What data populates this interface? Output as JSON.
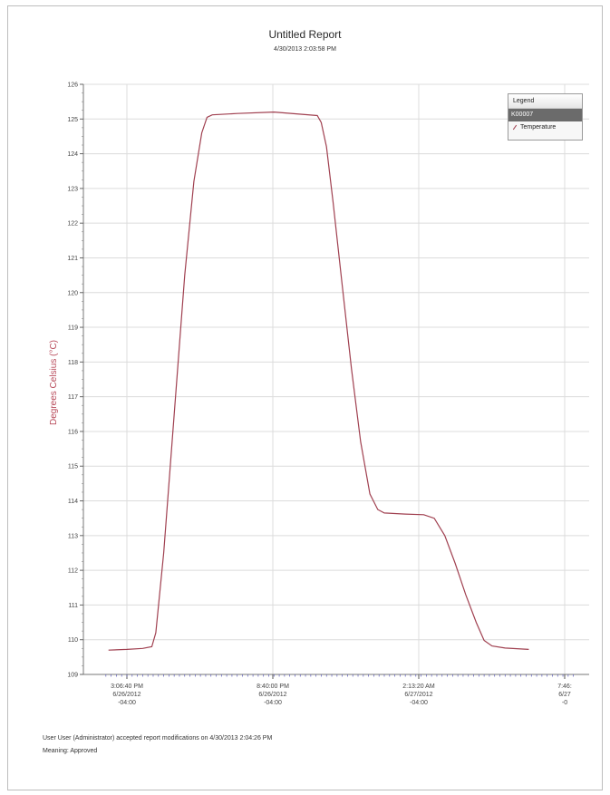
{
  "report": {
    "title": "Untitled Report",
    "subtitle": "4/30/2013 2:03:58 PM"
  },
  "legend": {
    "header": "Legend",
    "device": "K00007",
    "series_label": "Temperature"
  },
  "footer": {
    "line1": "User User (Administrator) accepted report modifications on 4/30/2013 2:04:26 PM",
    "line2": "Meaning: Approved"
  },
  "colors": {
    "series": "#a04050",
    "grid": "#dcdcdc",
    "axis_ticks": "#5a5ab8",
    "ylabel": "#b84a5a"
  },
  "chart_data": {
    "type": "line",
    "title": "Untitled Report",
    "subtitle": "4/30/2013 2:03:58 PM",
    "xlabel": "",
    "ylabel": "Degrees Celsius (°C)",
    "ylim": [
      109,
      126
    ],
    "yticks": [
      109,
      110,
      111,
      112,
      113,
      114,
      115,
      116,
      117,
      118,
      119,
      120,
      121,
      122,
      123,
      124,
      125,
      126
    ],
    "xlim_hours": [
      0,
      16.67
    ],
    "xticks": [
      {
        "h": 0,
        "lines": [
          "3:06:40 PM",
          "6/26/2012",
          "-04:00"
        ]
      },
      {
        "h": 5.556,
        "lines": [
          "8:40:00 PM",
          "6/26/2012",
          "-04:00"
        ]
      },
      {
        "h": 11.111,
        "lines": [
          "2:13:20 AM",
          "6/27/2012",
          "-04:00"
        ]
      },
      {
        "h": 16.667,
        "lines": [
          "7:46:",
          "6/27",
          "-0"
        ]
      }
    ],
    "grid": true,
    "legend_position": "top-right",
    "series": [
      {
        "name": "Temperature",
        "points": [
          [
            -0.7,
            109.7
          ],
          [
            0.0,
            109.72
          ],
          [
            0.6,
            109.75
          ],
          [
            0.95,
            109.8
          ],
          [
            1.1,
            110.2
          ],
          [
            1.4,
            112.5
          ],
          [
            1.8,
            116.5
          ],
          [
            2.2,
            120.5
          ],
          [
            2.55,
            123.2
          ],
          [
            2.85,
            124.6
          ],
          [
            3.05,
            125.05
          ],
          [
            3.25,
            125.12
          ],
          [
            4.2,
            125.16
          ],
          [
            5.6,
            125.2
          ],
          [
            6.4,
            125.15
          ],
          [
            7.25,
            125.1
          ],
          [
            7.4,
            124.9
          ],
          [
            7.6,
            124.2
          ],
          [
            7.85,
            122.6
          ],
          [
            8.2,
            120.2
          ],
          [
            8.55,
            117.8
          ],
          [
            8.9,
            115.7
          ],
          [
            9.25,
            114.2
          ],
          [
            9.55,
            113.75
          ],
          [
            9.8,
            113.65
          ],
          [
            10.6,
            113.62
          ],
          [
            11.3,
            113.6
          ],
          [
            11.7,
            113.5
          ],
          [
            12.1,
            113.0
          ],
          [
            12.5,
            112.2
          ],
          [
            12.9,
            111.3
          ],
          [
            13.3,
            110.5
          ],
          [
            13.6,
            109.98
          ],
          [
            13.9,
            109.82
          ],
          [
            14.4,
            109.76
          ],
          [
            15.3,
            109.72
          ]
        ]
      }
    ]
  }
}
